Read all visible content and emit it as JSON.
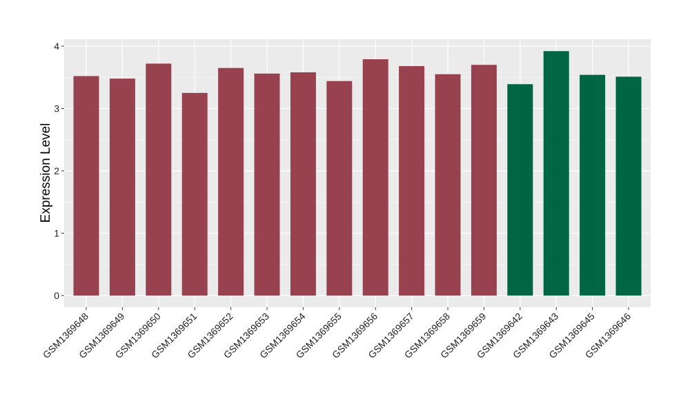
{
  "chart_data": {
    "type": "bar",
    "title": "",
    "xlabel": "",
    "ylabel": "Expression Level",
    "ylim": [
      0,
      4
    ],
    "yticks": [
      0,
      1,
      2,
      3,
      4
    ],
    "grid": true,
    "categories": [
      "GSM1369648",
      "GSM1369649",
      "GSM1369650",
      "GSM1369651",
      "GSM1369652",
      "GSM1369653",
      "GSM1369654",
      "GSM1369655",
      "GSM1369656",
      "GSM1369657",
      "GSM1369658",
      "GSM1369659",
      "GSM1369642",
      "GSM1369643",
      "GSM1369645",
      "GSM1369646"
    ],
    "values": [
      3.52,
      3.48,
      3.72,
      3.25,
      3.65,
      3.56,
      3.58,
      3.44,
      3.79,
      3.68,
      3.55,
      3.7,
      3.39,
      3.92,
      3.54,
      3.51
    ],
    "groups": [
      "a",
      "a",
      "a",
      "a",
      "a",
      "a",
      "a",
      "a",
      "a",
      "a",
      "a",
      "a",
      "b",
      "b",
      "b",
      "b"
    ],
    "colors": {
      "a": "#99424F",
      "b": "#006543"
    },
    "panel_bg": "#EBEBEB"
  }
}
